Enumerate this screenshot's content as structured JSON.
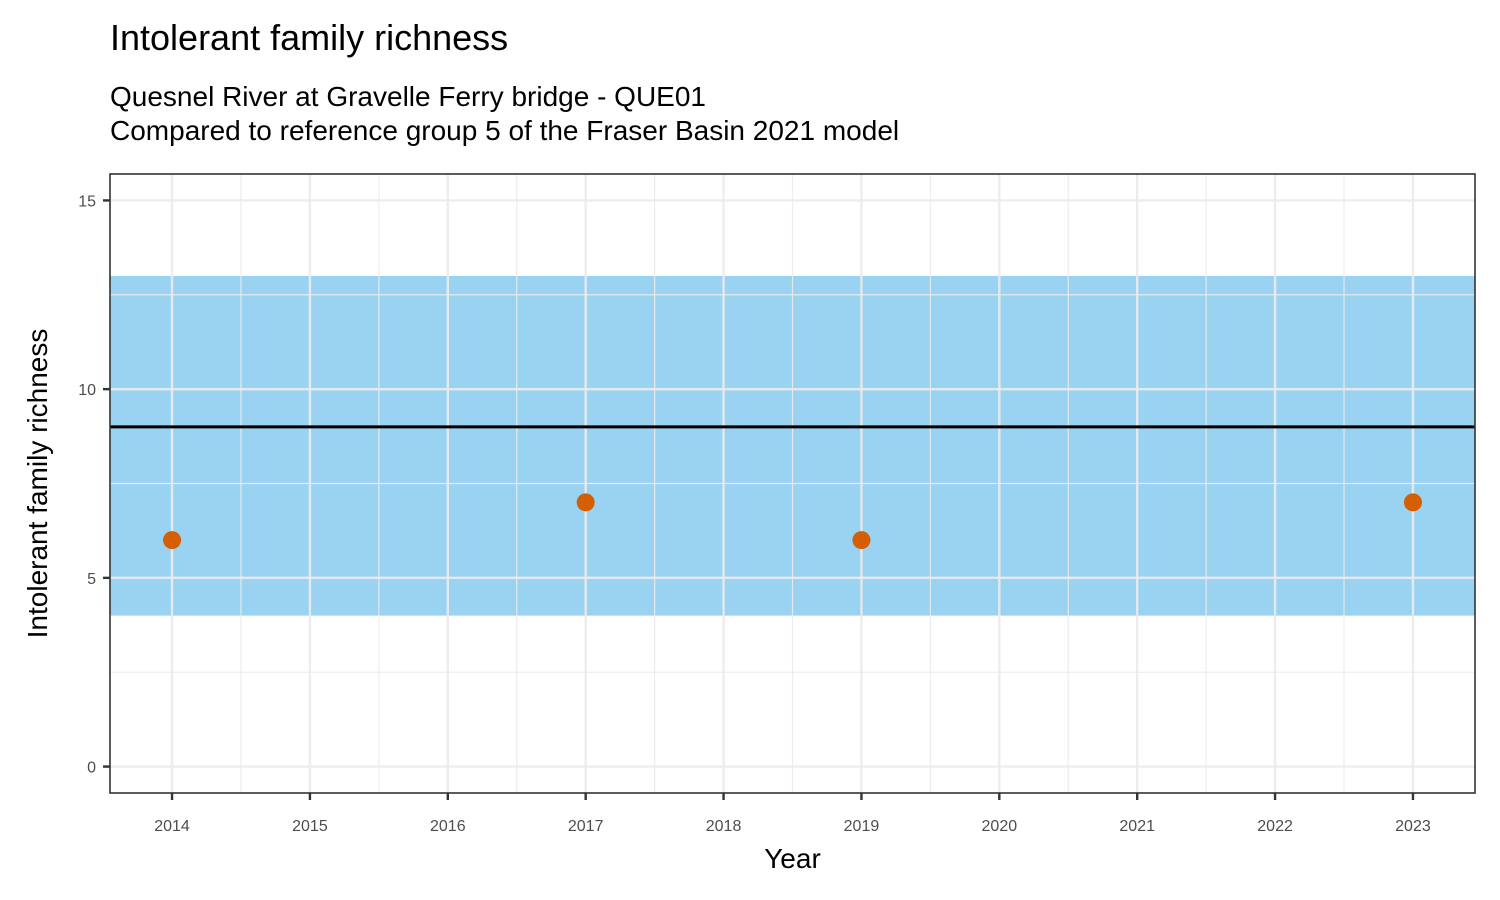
{
  "chart_data": {
    "type": "scatter",
    "title": "Intolerant family richness",
    "subtitle_lines": [
      "Quesnel River at Gravelle Ferry bridge - QUE01",
      "Compared to reference group 5 of the Fraser Basin 2021 model"
    ],
    "xlabel": "Year",
    "ylabel": "Intolerant family richness",
    "xlim": [
      2013.55,
      2023.45
    ],
    "ylim": [
      -0.7,
      15.7
    ],
    "x_ticks": [
      2014,
      2015,
      2016,
      2017,
      2018,
      2019,
      2020,
      2021,
      2022,
      2023
    ],
    "y_ticks": [
      0,
      5,
      10,
      15
    ],
    "grid": true,
    "points": [
      {
        "x": 2014,
        "y": 6
      },
      {
        "x": 2017,
        "y": 7
      },
      {
        "x": 2019,
        "y": 6
      },
      {
        "x": 2023,
        "y": 7
      }
    ],
    "reference_band": {
      "low": 4,
      "high": 13
    },
    "reference_line": 9,
    "colors": {
      "points": "#D55E00",
      "band": "#56B4E9",
      "line": "#000000",
      "grid": "#EBEBEB",
      "panel_border": "#333333"
    }
  }
}
